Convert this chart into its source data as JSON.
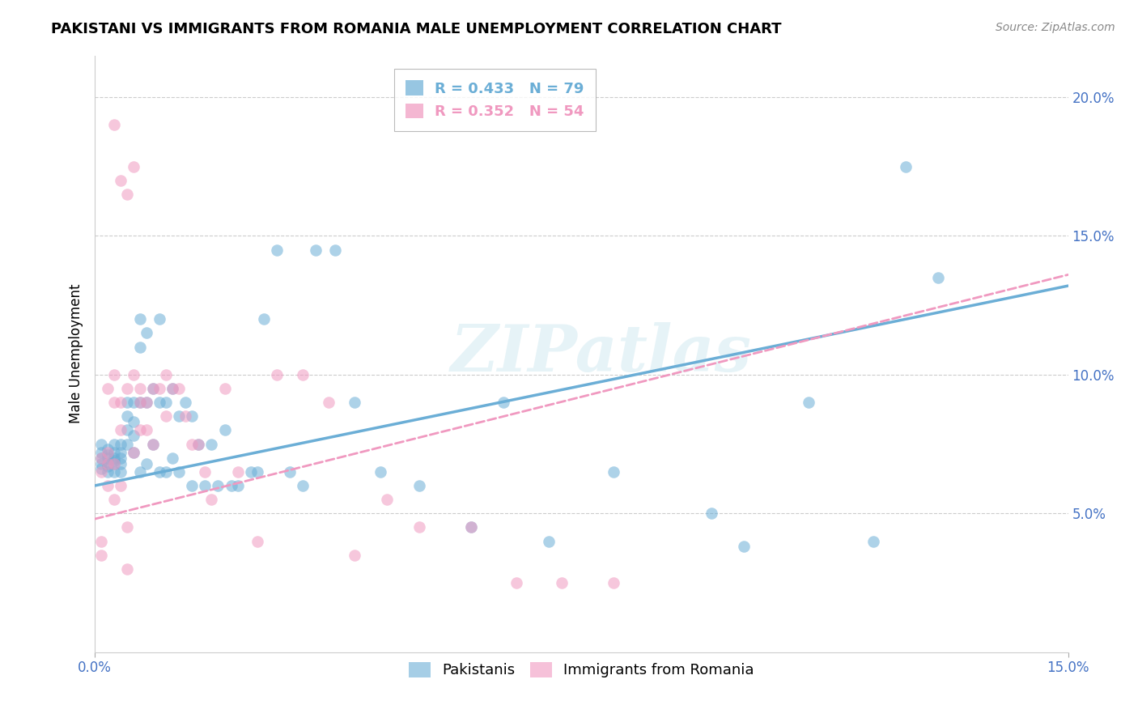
{
  "title": "PAKISTANI VS IMMIGRANTS FROM ROMANIA MALE UNEMPLOYMENT CORRELATION CHART",
  "source": "Source: ZipAtlas.com",
  "ylabel": "Male Unemployment",
  "xlim": [
    0.0,
    0.15
  ],
  "ylim": [
    0.0,
    0.215
  ],
  "xtick_positions": [
    0.0,
    0.15
  ],
  "xtick_labels": [
    "0.0%",
    "15.0%"
  ],
  "ytick_positions": [
    0.05,
    0.1,
    0.15,
    0.2
  ],
  "ytick_labels": [
    "5.0%",
    "10.0%",
    "15.0%",
    "20.0%"
  ],
  "grid_lines": [
    0.05,
    0.1,
    0.15,
    0.2
  ],
  "blue_color": "#6baed6",
  "pink_color": "#f099c0",
  "watermark": "ZIPatlas",
  "legend_stat_labels": [
    "R = 0.433   N = 79",
    "R = 0.352   N = 54"
  ],
  "legend_bottom_labels": [
    "Pakistanis",
    "Immigrants from Romania"
  ],
  "blue_line": {
    "x0": 0.0,
    "y0": 0.06,
    "x1": 0.15,
    "y1": 0.132
  },
  "pink_line": {
    "x0": 0.0,
    "y0": 0.048,
    "x1": 0.15,
    "y1": 0.136
  },
  "pk_x": [
    0.001,
    0.001,
    0.001,
    0.001,
    0.001,
    0.002,
    0.002,
    0.002,
    0.002,
    0.002,
    0.002,
    0.003,
    0.003,
    0.003,
    0.003,
    0.003,
    0.003,
    0.004,
    0.004,
    0.004,
    0.004,
    0.004,
    0.005,
    0.005,
    0.005,
    0.005,
    0.006,
    0.006,
    0.006,
    0.006,
    0.007,
    0.007,
    0.007,
    0.007,
    0.008,
    0.008,
    0.008,
    0.009,
    0.009,
    0.01,
    0.01,
    0.01,
    0.011,
    0.011,
    0.012,
    0.012,
    0.013,
    0.013,
    0.014,
    0.015,
    0.015,
    0.016,
    0.017,
    0.018,
    0.019,
    0.02,
    0.021,
    0.022,
    0.024,
    0.025,
    0.026,
    0.028,
    0.03,
    0.032,
    0.034,
    0.037,
    0.04,
    0.044,
    0.05,
    0.058,
    0.063,
    0.07,
    0.08,
    0.095,
    0.1,
    0.11,
    0.12,
    0.125,
    0.13
  ],
  "pk_y": [
    0.07,
    0.068,
    0.066,
    0.072,
    0.075,
    0.07,
    0.068,
    0.065,
    0.073,
    0.071,
    0.067,
    0.07,
    0.068,
    0.072,
    0.065,
    0.069,
    0.075,
    0.072,
    0.075,
    0.068,
    0.065,
    0.07,
    0.09,
    0.085,
    0.08,
    0.075,
    0.09,
    0.083,
    0.078,
    0.072,
    0.12,
    0.11,
    0.09,
    0.065,
    0.115,
    0.09,
    0.068,
    0.095,
    0.075,
    0.12,
    0.09,
    0.065,
    0.09,
    0.065,
    0.095,
    0.07,
    0.085,
    0.065,
    0.09,
    0.085,
    0.06,
    0.075,
    0.06,
    0.075,
    0.06,
    0.08,
    0.06,
    0.06,
    0.065,
    0.065,
    0.12,
    0.145,
    0.065,
    0.06,
    0.145,
    0.145,
    0.09,
    0.065,
    0.06,
    0.045,
    0.09,
    0.04,
    0.065,
    0.05,
    0.038,
    0.09,
    0.04,
    0.175,
    0.135
  ],
  "ro_x": [
    0.001,
    0.001,
    0.001,
    0.001,
    0.002,
    0.002,
    0.002,
    0.002,
    0.003,
    0.003,
    0.003,
    0.003,
    0.004,
    0.004,
    0.004,
    0.005,
    0.005,
    0.005,
    0.006,
    0.006,
    0.007,
    0.007,
    0.007,
    0.008,
    0.008,
    0.009,
    0.009,
    0.01,
    0.011,
    0.011,
    0.012,
    0.013,
    0.014,
    0.015,
    0.016,
    0.017,
    0.018,
    0.02,
    0.022,
    0.025,
    0.028,
    0.032,
    0.036,
    0.04,
    0.045,
    0.05,
    0.058,
    0.065,
    0.072,
    0.08,
    0.003,
    0.004,
    0.005,
    0.006
  ],
  "ro_y": [
    0.07,
    0.065,
    0.04,
    0.035,
    0.068,
    0.072,
    0.095,
    0.06,
    0.068,
    0.055,
    0.1,
    0.09,
    0.09,
    0.08,
    0.06,
    0.095,
    0.045,
    0.03,
    0.1,
    0.072,
    0.095,
    0.09,
    0.08,
    0.09,
    0.08,
    0.095,
    0.075,
    0.095,
    0.1,
    0.085,
    0.095,
    0.095,
    0.085,
    0.075,
    0.075,
    0.065,
    0.055,
    0.095,
    0.065,
    0.04,
    0.1,
    0.1,
    0.09,
    0.035,
    0.055,
    0.045,
    0.045,
    0.025,
    0.025,
    0.025,
    0.19,
    0.17,
    0.165,
    0.175
  ]
}
